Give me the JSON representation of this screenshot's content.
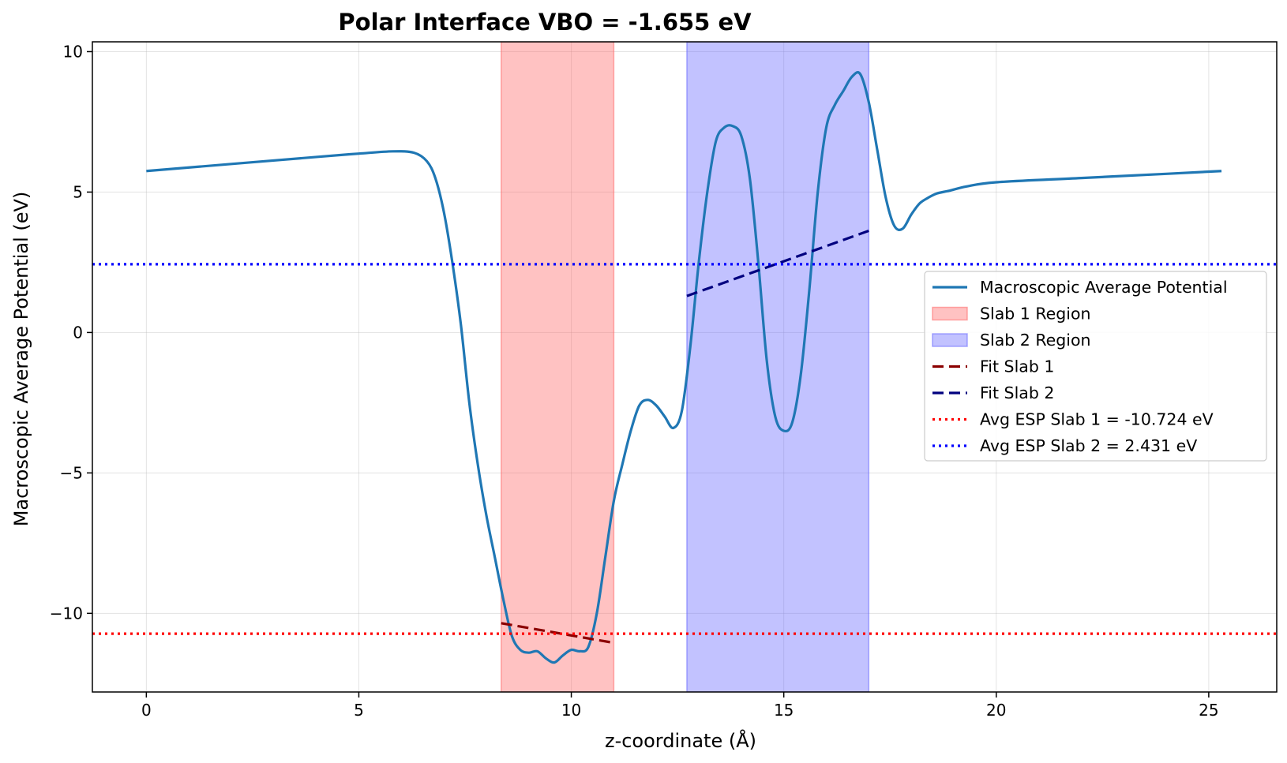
{
  "chart_data": {
    "type": "line",
    "title": "Polar Interface VBO = -1.655 eV",
    "xlabel": "z-coordinate (Å)",
    "ylabel": "Macroscopic Average Potential (eV)",
    "xlim": [
      -1.27,
      26.6
    ],
    "ylim": [
      -12.8,
      10.35
    ],
    "xticks": [
      0,
      5,
      10,
      15,
      20,
      25
    ],
    "yticks": [
      -10,
      -5,
      0,
      5,
      10
    ],
    "xtick_labels": [
      "0",
      "5",
      "10",
      "15",
      "20",
      "25"
    ],
    "ytick_labels": [
      "−10",
      "−5",
      "0",
      "5",
      "10"
    ],
    "grid": true,
    "legend_position": "center-right",
    "regions": [
      {
        "name": "Slab 1 Region",
        "x_start": 8.35,
        "x_end": 11.0,
        "color": "#ff6666"
      },
      {
        "name": "Slab 2 Region",
        "x_start": 12.72,
        "x_end": 17.0,
        "color": "#6666ff"
      }
    ],
    "series": [
      {
        "name": "Macroscopic Average Potential",
        "color": "#1f77b4",
        "style": "solid",
        "x": [
          0,
          2,
          4,
          5,
          5.8,
          6.3,
          6.6,
          6.8,
          7.0,
          7.2,
          7.4,
          7.6,
          7.8,
          8.0,
          8.2,
          8.4,
          8.6,
          8.8,
          9.0,
          9.2,
          9.4,
          9.6,
          9.8,
          10.0,
          10.2,
          10.4,
          10.6,
          10.8,
          11.0,
          11.2,
          11.4,
          11.6,
          11.8,
          12.0,
          12.2,
          12.4,
          12.6,
          12.8,
          13.0,
          13.2,
          13.4,
          13.6,
          13.8,
          14.0,
          14.2,
          14.4,
          14.6,
          14.8,
          15.0,
          15.2,
          15.4,
          15.6,
          15.8,
          16.0,
          16.2,
          16.4,
          16.6,
          16.8,
          17.0,
          17.2,
          17.4,
          17.6,
          17.8,
          18.0,
          18.2,
          18.4,
          18.6,
          18.9,
          19.3,
          20,
          22,
          24,
          25.3
        ],
        "y": [
          5.75,
          6.0,
          6.25,
          6.37,
          6.45,
          6.4,
          6.1,
          5.5,
          4.3,
          2.5,
          0.3,
          -2.5,
          -4.7,
          -6.5,
          -8.0,
          -9.5,
          -10.8,
          -11.3,
          -11.4,
          -11.35,
          -11.6,
          -11.75,
          -11.5,
          -11.3,
          -11.35,
          -11.2,
          -10.0,
          -8.0,
          -6.0,
          -4.7,
          -3.5,
          -2.6,
          -2.4,
          -2.6,
          -3.0,
          -3.4,
          -2.8,
          -0.5,
          2.5,
          5.0,
          6.8,
          7.3,
          7.35,
          7.0,
          5.5,
          2.5,
          -1.0,
          -3.0,
          -3.5,
          -3.2,
          -1.5,
          1.5,
          5.0,
          7.3,
          8.1,
          8.6,
          9.1,
          9.2,
          8.2,
          6.5,
          4.8,
          3.8,
          3.7,
          4.2,
          4.6,
          4.8,
          4.95,
          5.05,
          5.2,
          5.35,
          5.5,
          5.65,
          5.75
        ]
      },
      {
        "name": "Fit Slab 1",
        "color": "#8b0000",
        "style": "dashed",
        "x": [
          8.35,
          11.0
        ],
        "y": [
          -10.35,
          -11.05
        ]
      },
      {
        "name": "Fit Slab 2",
        "color": "#00007f",
        "style": "dashed",
        "x": [
          12.72,
          17.0
        ],
        "y": [
          1.3,
          3.62
        ]
      },
      {
        "name": "Avg ESP Slab 1 = -10.724 eV",
        "color": "#ff0000",
        "style": "dotted",
        "hline": -10.724
      },
      {
        "name": "Avg ESP Slab 2 = 2.431 eV",
        "color": "#0000ff",
        "style": "dotted",
        "hline": 2.431
      }
    ],
    "legend": [
      {
        "label": "Macroscopic Average Potential",
        "kind": "line",
        "color": "#1f77b4",
        "dash": ""
      },
      {
        "label": "Slab 1 Region",
        "kind": "patch",
        "color": "#ff6666",
        "dash": ""
      },
      {
        "label": "Slab 2 Region",
        "kind": "patch",
        "color": "#6666ff",
        "dash": ""
      },
      {
        "label": "Fit Slab 1",
        "kind": "line",
        "color": "#8b0000",
        "dash": "14,7"
      },
      {
        "label": "Fit Slab 2",
        "kind": "line",
        "color": "#00007f",
        "dash": "14,7"
      },
      {
        "label": "Avg ESP Slab 1 = -10.724 eV",
        "kind": "line",
        "color": "#ff0000",
        "dash": "3,5"
      },
      {
        "label": "Avg ESP Slab 2 = 2.431 eV",
        "kind": "line",
        "color": "#0000ff",
        "dash": "3,5"
      }
    ]
  }
}
